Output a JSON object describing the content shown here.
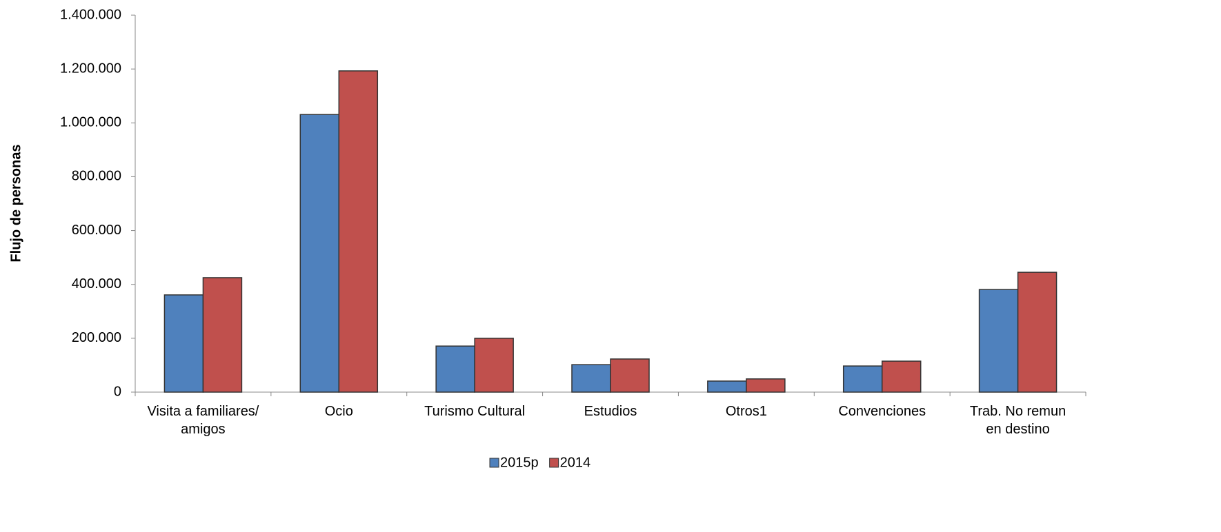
{
  "chart_data": {
    "type": "bar",
    "y_axis_label": "Flujo de personas",
    "categories": [
      "Visita a familiares/\namigos",
      "Ocio",
      "Turismo Cultural",
      "Estudios",
      "Otros1",
      "Convenciones",
      "Trab. No remun\nen destino"
    ],
    "series": [
      {
        "name": "2015p",
        "color": "#4f81bd",
        "values": [
          361000,
          1031000,
          171000,
          102000,
          41000,
          97000,
          381000
        ]
      },
      {
        "name": "2014",
        "color": "#c0504d",
        "values": [
          425000,
          1193000,
          200000,
          123000,
          49000,
          115000,
          445000
        ]
      }
    ],
    "ylim": [
      0,
      1400000
    ],
    "yticks": [
      0,
      {
        "value": 200000,
        "label": "200.000"
      },
      {
        "value": 400000,
        "label": "400.000"
      },
      {
        "value": 600000,
        "label": "600.000"
      },
      {
        "value": 800000,
        "label": "800.000"
      },
      {
        "value": 1000000,
        "label": "1.000.000"
      },
      {
        "value": 1200000,
        "label": "1.200.000"
      },
      {
        "value": 1400000,
        "label": "1.400.000"
      }
    ],
    "legend": "bottom"
  }
}
